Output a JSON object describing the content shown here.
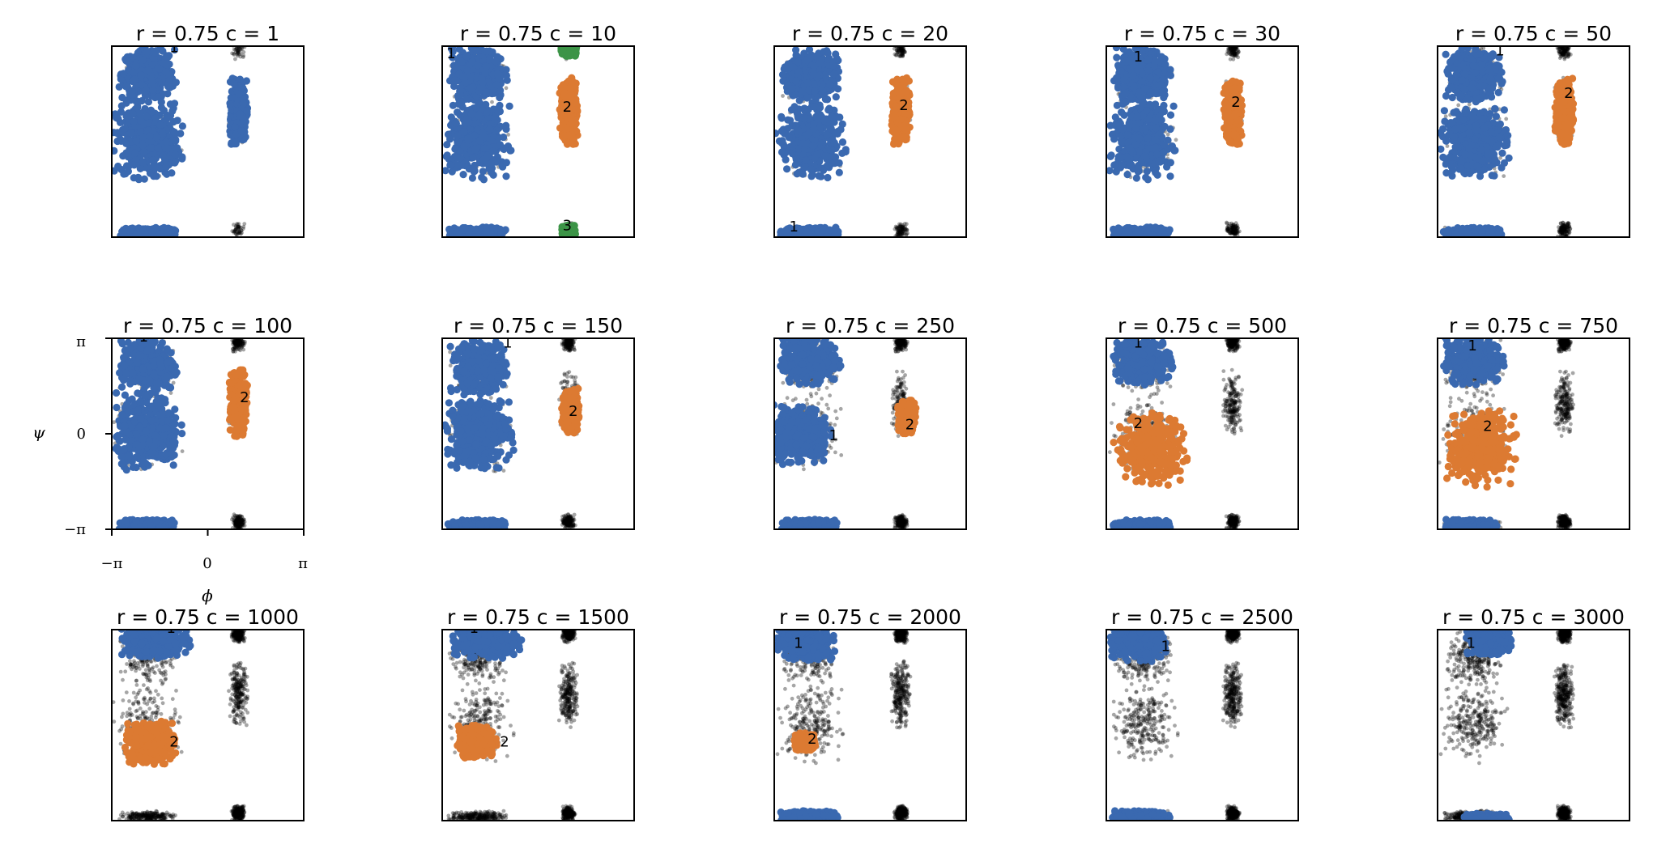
{
  "colors": {
    "cluster_1": "#3a69b0",
    "cluster_2": "#dc7a32",
    "cluster_3": "#3c9447",
    "unassigned": "#000000",
    "frame": "#000000"
  },
  "chart_data": {
    "type": "scatter",
    "layout_grid": "3 rows x 5 columns",
    "x_axis": {
      "label": "ϕ",
      "ticks": [
        "−π",
        "0",
        "π"
      ],
      "lim": [
        -3.1416,
        3.1416
      ]
    },
    "y_axis": {
      "label": "ψ",
      "ticks": [
        "−π",
        "0",
        "π"
      ],
      "lim": [
        -3.1416,
        3.1416
      ]
    },
    "panels": [
      {
        "r": 0.75,
        "c": 1,
        "title": "r = 0.75  c = 1",
        "clusters": [
          {
            "label": "1",
            "color": "cluster_1",
            "regions": [
              "beta",
              "alpha",
              "bottom",
              "left_handed"
            ],
            "label_pos": [
              -1.1,
              3.1
            ]
          }
        ]
      },
      {
        "r": 0.75,
        "c": 10,
        "title": "r = 0.75  c = 10",
        "clusters": [
          {
            "label": "1",
            "color": "cluster_1",
            "regions": [
              "beta",
              "alpha",
              "bottom"
            ],
            "label_pos": [
              -2.85,
              2.9
            ]
          },
          {
            "label": "2",
            "color": "cluster_2",
            "regions": [
              "left_handed"
            ],
            "label_pos": [
              0.95,
              1.15
            ]
          },
          {
            "label": "3",
            "color": "cluster_3",
            "regions": [
              "lh_top",
              "lh_bottom"
            ],
            "label_pos": [
              0.95,
              -2.75
            ]
          }
        ]
      },
      {
        "r": 0.75,
        "c": 20,
        "title": "r = 0.75  c = 20",
        "clusters": [
          {
            "label": "1",
            "color": "cluster_1",
            "regions": [
              "beta",
              "alpha",
              "bottom"
            ],
            "label_pos": [
              -2.5,
              -2.8
            ]
          },
          {
            "label": "2",
            "color": "cluster_2",
            "regions": [
              "left_handed"
            ],
            "label_pos": [
              1.1,
              1.2
            ]
          }
        ]
      },
      {
        "r": 0.75,
        "c": 30,
        "title": "r = 0.75  c = 30",
        "clusters": [
          {
            "label": "1",
            "color": "cluster_1",
            "regions": [
              "beta",
              "alpha",
              "bottom"
            ],
            "label_pos": [
              -2.1,
              2.8
            ]
          },
          {
            "label": "2",
            "color": "cluster_2",
            "regions": [
              "left_handed"
            ],
            "label_pos": [
              1.1,
              1.3
            ]
          }
        ]
      },
      {
        "r": 0.75,
        "c": 50,
        "title": "r = 0.75  c = 50",
        "clusters": [
          {
            "label": "1",
            "color": "cluster_1",
            "regions": [
              "beta",
              "alpha",
              "bottom"
            ],
            "label_pos": [
              -1.1,
              3.0
            ]
          },
          {
            "label": "2",
            "color": "cluster_2",
            "regions": [
              "left_handed"
            ],
            "label_pos": [
              1.15,
              1.6
            ]
          }
        ]
      },
      {
        "r": 0.75,
        "c": 100,
        "title": "r = 0.75  c = 100",
        "clusters": [
          {
            "label": "1",
            "color": "cluster_1",
            "regions": [
              "beta",
              "alpha",
              "bottom"
            ],
            "label_pos": [
              -2.1,
              3.2
            ]
          },
          {
            "label": "2",
            "color": "cluster_2",
            "regions": [
              "left_handed"
            ],
            "label_pos": [
              1.2,
              1.2
            ]
          }
        ]
      },
      {
        "r": 0.75,
        "c": 150,
        "title": "r = 0.75  c = 150",
        "clusters": [
          {
            "label": "1",
            "color": "cluster_1",
            "regions": [
              "beta",
              "alpha",
              "bottom"
            ],
            "label_pos": [
              -1.0,
              3.0
            ]
          },
          {
            "label": "2",
            "color": "cluster_2",
            "regions": [
              "left_handed_small"
            ],
            "label_pos": [
              1.15,
              0.75
            ]
          }
        ]
      },
      {
        "r": 0.75,
        "c": 250,
        "title": "r = 0.75  c = 250",
        "clusters": [
          {
            "label": "1",
            "color": "cluster_1",
            "regions": [
              "beta_mid",
              "alpha_blob",
              "bottom"
            ],
            "label_pos": [
              -1.2,
              -0.05
            ]
          },
          {
            "label": "2",
            "color": "cluster_2",
            "regions": [
              "left_handed_blob"
            ],
            "label_pos": [
              1.3,
              0.3
            ]
          }
        ]
      },
      {
        "r": 0.75,
        "c": 500,
        "title": "r = 0.75  c = 500",
        "clusters": [
          {
            "label": "1",
            "color": "cluster_1",
            "regions": [
              "beta_mid",
              "bottom"
            ],
            "label_pos": [
              -2.1,
              3.0
            ]
          },
          {
            "label": "2",
            "color": "cluster_2",
            "regions": [
              "alpha_big"
            ],
            "label_pos": [
              -2.1,
              0.35
            ]
          }
        ]
      },
      {
        "r": 0.75,
        "c": 750,
        "title": "r = 0.75  c = 750",
        "clusters": [
          {
            "label": "1",
            "color": "cluster_1",
            "regions": [
              "beta_mid",
              "bottom"
            ],
            "label_pos": [
              -2.0,
              2.9
            ]
          },
          {
            "label": "2",
            "color": "cluster_2",
            "regions": [
              "alpha_big"
            ],
            "label_pos": [
              -1.5,
              0.25
            ]
          }
        ]
      },
      {
        "r": 0.75,
        "c": 1000,
        "title": "r = 0.75  c = 1000",
        "clusters": [
          {
            "label": "1",
            "color": "cluster_1",
            "regions": [
              "beta_top"
            ],
            "label_pos": [
              -1.2,
              3.2
            ]
          },
          {
            "label": "2",
            "color": "cluster_2",
            "regions": [
              "alpha_med"
            ],
            "label_pos": [
              -1.1,
              -0.55
            ]
          }
        ]
      },
      {
        "r": 0.75,
        "c": 1500,
        "title": "r = 0.75  c = 1500",
        "clusters": [
          {
            "label": "1",
            "color": "cluster_1",
            "regions": [
              "beta_top"
            ],
            "label_pos": [
              -2.1,
              3.2
            ]
          },
          {
            "label": "2",
            "color": "cluster_2",
            "regions": [
              "alpha_small"
            ],
            "label_pos": [
              -1.1,
              -0.55
            ]
          }
        ]
      },
      {
        "r": 0.75,
        "c": 2000,
        "title": "r = 0.75  c = 2000",
        "clusters": [
          {
            "label": "1",
            "color": "cluster_1",
            "regions": [
              "beta_cap",
              "bottom"
            ],
            "label_pos": [
              -2.35,
              2.7
            ]
          },
          {
            "label": "2",
            "color": "cluster_2",
            "regions": [
              "alpha_tiny"
            ],
            "label_pos": [
              -1.9,
              -0.45
            ]
          }
        ]
      },
      {
        "r": 0.75,
        "c": 2500,
        "title": "r = 0.75  c = 2500",
        "clusters": [
          {
            "label": "1",
            "color": "cluster_1",
            "regions": [
              "beta_cap",
              "bottom"
            ],
            "label_pos": [
              -1.2,
              2.6
            ]
          }
        ]
      },
      {
        "r": 0.75,
        "c": 3000,
        "title": "r = 0.75  c = 3000",
        "clusters": [
          {
            "label": "1",
            "color": "cluster_1",
            "regions": [
              "beta_cap_small",
              "bottom_small"
            ],
            "label_pos": [
              -2.05,
              2.7
            ]
          }
        ]
      }
    ]
  }
}
